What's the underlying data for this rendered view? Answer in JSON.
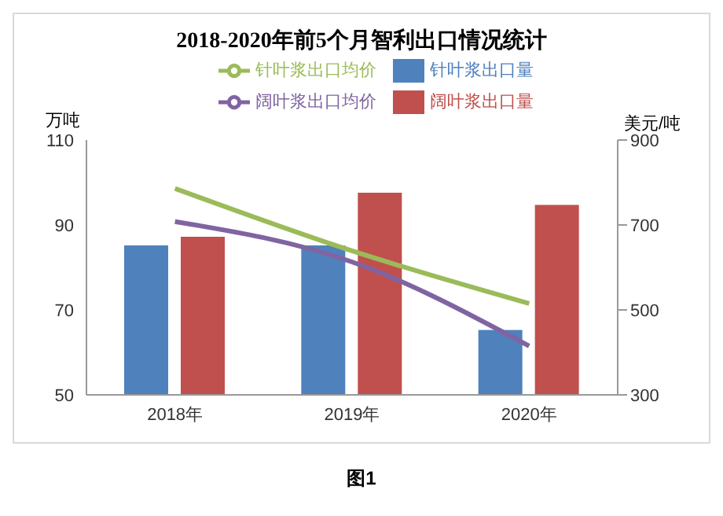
{
  "chart_data": {
    "type": "bar",
    "title": "2018-2020年前5个月智利出口情况统计",
    "categories": [
      "2018年",
      "2019年",
      "2020年"
    ],
    "series": [
      {
        "name": "针叶浆出口量",
        "color": "#4f81bd",
        "values": [
          85.2,
          85.2,
          65.3
        ]
      },
      {
        "name": "阔叶浆出口量",
        "color": "#c0504d",
        "values": [
          87.2,
          97.6,
          94.7
        ]
      },
      {
        "name": "针叶浆出口均价",
        "type": "line",
        "axis": "y2",
        "color": "#9bbb59",
        "values": [
          786,
          639,
          515
        ]
      },
      {
        "name": "阔叶浆出口均价",
        "type": "line",
        "axis": "y2",
        "color": "#8064a2",
        "values": [
          708,
          613,
          415
        ]
      }
    ],
    "ylabel": "万吨",
    "y2label": "美元/吨",
    "ylim": [
      50,
      110
    ],
    "yticks": [
      50,
      70,
      90,
      110
    ],
    "y2lim": [
      300,
      900
    ],
    "y2ticks": [
      300,
      500,
      700,
      900
    ],
    "grid": false,
    "legend": "top",
    "marker": "none",
    "annotations": [
      "图1"
    ]
  }
}
